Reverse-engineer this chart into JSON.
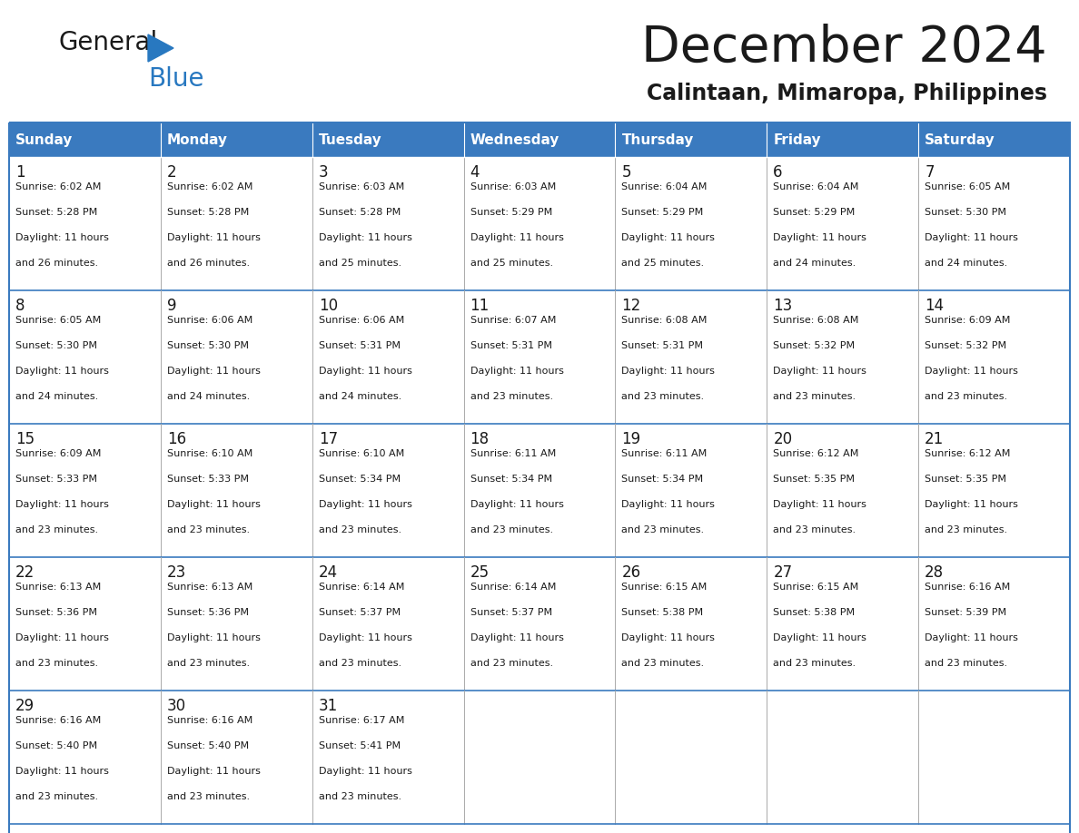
{
  "title": "December 2024",
  "subtitle": "Calintaan, Mimaropa, Philippines",
  "header_color": "#3a7abf",
  "header_text_color": "#ffffff",
  "border_color": "#3a7abf",
  "cell_border_color": "#aaaaaa",
  "text_color": "#1a1a1a",
  "day_headers": [
    "Sunday",
    "Monday",
    "Tuesday",
    "Wednesday",
    "Thursday",
    "Friday",
    "Saturday"
  ],
  "weeks": [
    [
      {
        "day": 1,
        "sunrise": "6:02 AM",
        "sunset": "5:28 PM",
        "daylight": "11 hours and 26 minutes."
      },
      {
        "day": 2,
        "sunrise": "6:02 AM",
        "sunset": "5:28 PM",
        "daylight": "11 hours and 26 minutes."
      },
      {
        "day": 3,
        "sunrise": "6:03 AM",
        "sunset": "5:28 PM",
        "daylight": "11 hours and 25 minutes."
      },
      {
        "day": 4,
        "sunrise": "6:03 AM",
        "sunset": "5:29 PM",
        "daylight": "11 hours and 25 minutes."
      },
      {
        "day": 5,
        "sunrise": "6:04 AM",
        "sunset": "5:29 PM",
        "daylight": "11 hours and 25 minutes."
      },
      {
        "day": 6,
        "sunrise": "6:04 AM",
        "sunset": "5:29 PM",
        "daylight": "11 hours and 24 minutes."
      },
      {
        "day": 7,
        "sunrise": "6:05 AM",
        "sunset": "5:30 PM",
        "daylight": "11 hours and 24 minutes."
      }
    ],
    [
      {
        "day": 8,
        "sunrise": "6:05 AM",
        "sunset": "5:30 PM",
        "daylight": "11 hours and 24 minutes."
      },
      {
        "day": 9,
        "sunrise": "6:06 AM",
        "sunset": "5:30 PM",
        "daylight": "11 hours and 24 minutes."
      },
      {
        "day": 10,
        "sunrise": "6:06 AM",
        "sunset": "5:31 PM",
        "daylight": "11 hours and 24 minutes."
      },
      {
        "day": 11,
        "sunrise": "6:07 AM",
        "sunset": "5:31 PM",
        "daylight": "11 hours and 23 minutes."
      },
      {
        "day": 12,
        "sunrise": "6:08 AM",
        "sunset": "5:31 PM",
        "daylight": "11 hours and 23 minutes."
      },
      {
        "day": 13,
        "sunrise": "6:08 AM",
        "sunset": "5:32 PM",
        "daylight": "11 hours and 23 minutes."
      },
      {
        "day": 14,
        "sunrise": "6:09 AM",
        "sunset": "5:32 PM",
        "daylight": "11 hours and 23 minutes."
      }
    ],
    [
      {
        "day": 15,
        "sunrise": "6:09 AM",
        "sunset": "5:33 PM",
        "daylight": "11 hours and 23 minutes."
      },
      {
        "day": 16,
        "sunrise": "6:10 AM",
        "sunset": "5:33 PM",
        "daylight": "11 hours and 23 minutes."
      },
      {
        "day": 17,
        "sunrise": "6:10 AM",
        "sunset": "5:34 PM",
        "daylight": "11 hours and 23 minutes."
      },
      {
        "day": 18,
        "sunrise": "6:11 AM",
        "sunset": "5:34 PM",
        "daylight": "11 hours and 23 minutes."
      },
      {
        "day": 19,
        "sunrise": "6:11 AM",
        "sunset": "5:34 PM",
        "daylight": "11 hours and 23 minutes."
      },
      {
        "day": 20,
        "sunrise": "6:12 AM",
        "sunset": "5:35 PM",
        "daylight": "11 hours and 23 minutes."
      },
      {
        "day": 21,
        "sunrise": "6:12 AM",
        "sunset": "5:35 PM",
        "daylight": "11 hours and 23 minutes."
      }
    ],
    [
      {
        "day": 22,
        "sunrise": "6:13 AM",
        "sunset": "5:36 PM",
        "daylight": "11 hours and 23 minutes."
      },
      {
        "day": 23,
        "sunrise": "6:13 AM",
        "sunset": "5:36 PM",
        "daylight": "11 hours and 23 minutes."
      },
      {
        "day": 24,
        "sunrise": "6:14 AM",
        "sunset": "5:37 PM",
        "daylight": "11 hours and 23 minutes."
      },
      {
        "day": 25,
        "sunrise": "6:14 AM",
        "sunset": "5:37 PM",
        "daylight": "11 hours and 23 minutes."
      },
      {
        "day": 26,
        "sunrise": "6:15 AM",
        "sunset": "5:38 PM",
        "daylight": "11 hours and 23 minutes."
      },
      {
        "day": 27,
        "sunrise": "6:15 AM",
        "sunset": "5:38 PM",
        "daylight": "11 hours and 23 minutes."
      },
      {
        "day": 28,
        "sunrise": "6:16 AM",
        "sunset": "5:39 PM",
        "daylight": "11 hours and 23 minutes."
      }
    ],
    [
      {
        "day": 29,
        "sunrise": "6:16 AM",
        "sunset": "5:40 PM",
        "daylight": "11 hours and 23 minutes."
      },
      {
        "day": 30,
        "sunrise": "6:16 AM",
        "sunset": "5:40 PM",
        "daylight": "11 hours and 23 minutes."
      },
      {
        "day": 31,
        "sunrise": "6:17 AM",
        "sunset": "5:41 PM",
        "daylight": "11 hours and 23 minutes."
      },
      null,
      null,
      null,
      null
    ]
  ],
  "logo_color_general": "#1a1a1a",
  "logo_color_blue": "#2878c0",
  "logo_triangle_color": "#2878c0",
  "title_fontsize": 40,
  "subtitle_fontsize": 17,
  "header_fontsize": 11,
  "day_number_fontsize": 12,
  "cell_text_fontsize": 8
}
